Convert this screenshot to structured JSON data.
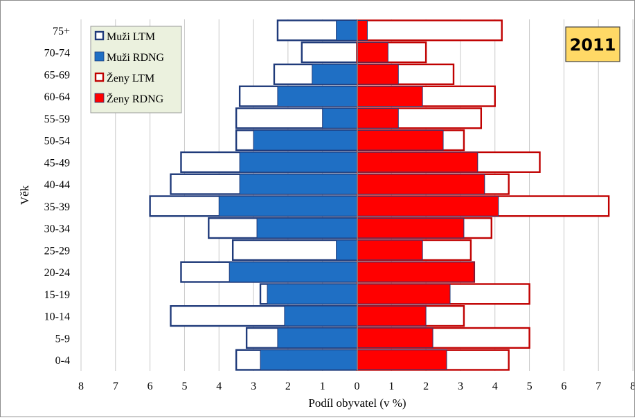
{
  "chart_data": {
    "type": "bar",
    "orientation": "horizontal",
    "layout": "population-pyramid",
    "year_label": "2011",
    "xlabel": "Podíl obyvatel (v %)",
    "ylabel": "Věk",
    "xlim": [
      -8,
      8
    ],
    "x_ticks": [
      -8,
      -7,
      -6,
      -5,
      -4,
      -3,
      -2,
      -1,
      0,
      1,
      2,
      3,
      4,
      5,
      6,
      7,
      8
    ],
    "x_tick_labels": [
      "8",
      "7",
      "6",
      "5",
      "4",
      "3",
      "2",
      "1",
      "0",
      "1",
      "2",
      "3",
      "4",
      "5",
      "6",
      "7",
      "8"
    ],
    "grid": true,
    "legend_position": "top-left",
    "categories": [
      "0-4",
      "5-9",
      "10-14",
      "15-19",
      "20-24",
      "25-29",
      "30-34",
      "35-39",
      "40-44",
      "45-49",
      "50-54",
      "55-59",
      "60-64",
      "65-69",
      "70-74",
      "75+"
    ],
    "series": [
      {
        "name": "Muži LTM",
        "side": "left",
        "style": "outline",
        "color": "#1f3a7a",
        "values": [
          3.5,
          3.2,
          5.4,
          2.8,
          5.1,
          3.6,
          4.3,
          6.0,
          5.4,
          5.1,
          3.5,
          3.5,
          3.4,
          2.4,
          1.6,
          2.3
        ]
      },
      {
        "name": "Muži RDNG",
        "side": "left",
        "style": "filled",
        "color": "#1f6fc4",
        "values": [
          2.8,
          2.3,
          2.1,
          2.6,
          3.7,
          0.6,
          2.9,
          4.0,
          3.4,
          3.4,
          3.0,
          1.0,
          2.3,
          1.3,
          0.0,
          0.6
        ]
      },
      {
        "name": "Ženy LTM",
        "side": "right",
        "style": "outline",
        "color": "#c00000",
        "values": [
          4.4,
          5.0,
          3.1,
          5.0,
          3.4,
          3.3,
          3.9,
          7.3,
          4.4,
          5.3,
          3.1,
          3.6,
          4.0,
          2.8,
          2.0,
          4.2
        ]
      },
      {
        "name": "Ženy RDNG",
        "side": "right",
        "style": "filled",
        "color": "#ff0000",
        "values": [
          2.6,
          2.2,
          2.0,
          2.7,
          3.4,
          1.9,
          3.1,
          4.1,
          3.7,
          3.5,
          2.5,
          1.2,
          1.9,
          1.2,
          0.9,
          0.3
        ]
      }
    ]
  }
}
